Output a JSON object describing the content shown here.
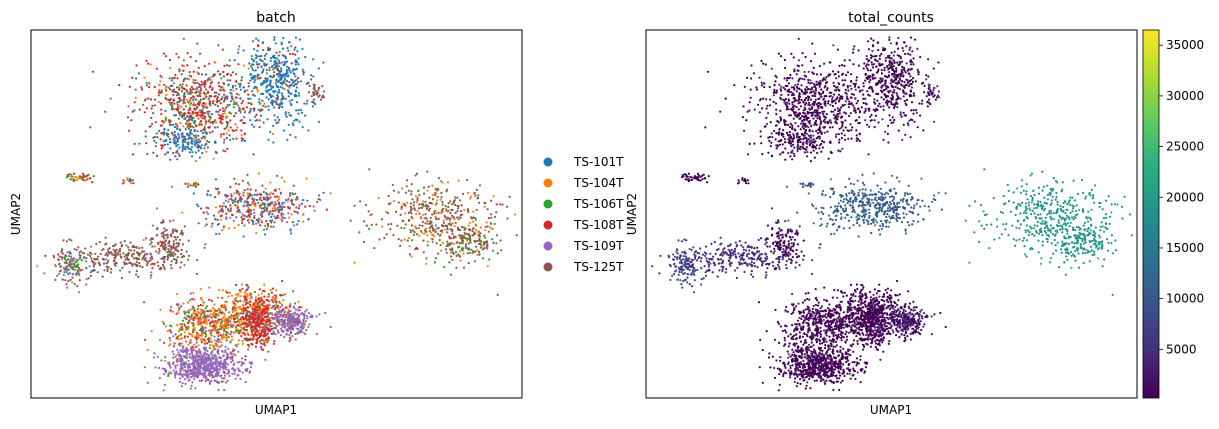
{
  "chart_data": [
    {
      "type": "scatter",
      "title": "batch",
      "xlabel": "UMAP1",
      "ylabel": "UMAP2",
      "grid": false,
      "ticks": "hidden",
      "legend": {
        "placement": "right, outside",
        "entries": [
          {
            "name": "TS-101T",
            "color": "#1f77b4"
          },
          {
            "name": "TS-104T",
            "color": "#ff7f0e"
          },
          {
            "name": "TS-106T",
            "color": "#2ca02c"
          },
          {
            "name": "TS-108T",
            "color": "#d62728"
          },
          {
            "name": "TS-109T",
            "color": "#9467bd"
          },
          {
            "name": "TS-125T",
            "color": "#8c564b"
          }
        ]
      }
    },
    {
      "type": "scatter",
      "title": "total_counts",
      "xlabel": "UMAP1",
      "ylabel": "UMAP2",
      "grid": false,
      "ticks": "hidden",
      "colorscale": "viridis",
      "colorbar": {
        "range": [
          200,
          36500
        ],
        "ticks": [
          5000,
          10000,
          15000,
          20000,
          25000,
          30000,
          35000
        ]
      }
    }
  ]
}
